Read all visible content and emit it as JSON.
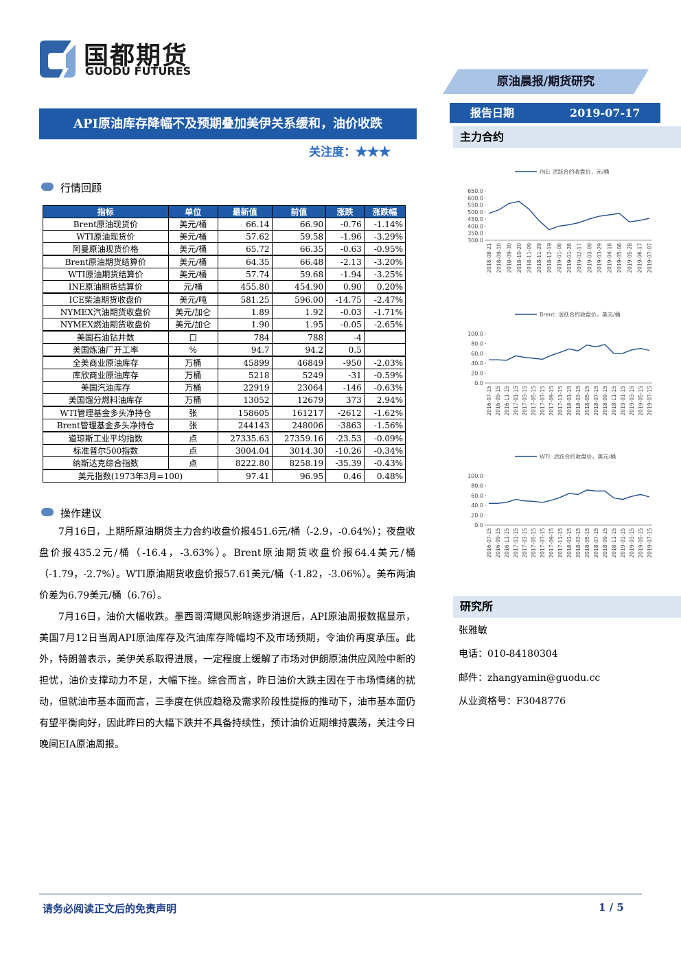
{
  "header": {
    "logo_cn": "国都期货",
    "logo_en": "GUODU FUTURES",
    "banner": "原油晨报/期货研究",
    "title": "API原油库存降幅不及预期叠加美伊关系缓和，油价收跌",
    "attention_label": "关注度：",
    "attention_stars": "★★★",
    "date_label": "报告日期",
    "date": "2019-07-17"
  },
  "market_section": "行情回顾",
  "table": {
    "headers": [
      "指标",
      "单位",
      "最新值",
      "前值",
      "涨跌",
      "涨跌幅"
    ],
    "groups": [
      [
        [
          "Brent原油现货价",
          "美元/桶",
          "66.14",
          "66.90",
          "-0.76",
          "-1.14%"
        ],
        [
          "WTI原油现货价",
          "美元/桶",
          "57.62",
          "59.58",
          "-1.96",
          "-3.29%"
        ],
        [
          "阿曼原油现货价格",
          "美元/桶",
          "65.72",
          "66.35",
          "-0.63",
          "-0.95%"
        ]
      ],
      [
        [
          "Brent原油期货结算价",
          "美元/桶",
          "64.35",
          "66.48",
          "-2.13",
          "-3.20%"
        ],
        [
          "WTI原油期货结算价",
          "美元/桶",
          "57.74",
          "59.68",
          "-1.94",
          "-3.25%"
        ],
        [
          "INE原油期货结算价",
          "元/桶",
          "455.80",
          "454.90",
          "0.90",
          "0.20%"
        ]
      ],
      [
        [
          "ICE柴油期货收盘价",
          "美元/吨",
          "581.25",
          "596.00",
          "-14.75",
          "-2.47%"
        ],
        [
          "NYMEX汽油期货收盘价",
          "美元/加仑",
          "1.89",
          "1.92",
          "-0.03",
          "-1.71%"
        ],
        [
          "NYMEX燃油期货收盘价",
          "美元/加仑",
          "1.90",
          "1.95",
          "-0.05",
          "-2.65%"
        ]
      ],
      [
        [
          "美国石油钻井数",
          "口",
          "784",
          "788",
          "-4"
        ],
        [
          "美国炼油厂开工率",
          "%",
          "94.7",
          "94.2",
          "0.5"
        ]
      ],
      [
        [
          "全美商业原油库存",
          "万桶",
          "45899",
          "46849",
          "-950",
          "-2.03%"
        ],
        [
          "库欣商业原油库存",
          "万桶",
          "5218",
          "5249",
          "-31",
          "-0.59%"
        ],
        [
          "美国汽油库存",
          "万桶",
          "22919",
          "23064",
          "-146",
          "-0.63%"
        ],
        [
          "美国馏分燃料油库存",
          "万桶",
          "13052",
          "12679",
          "373",
          "2.94%"
        ]
      ],
      [
        [
          "WTI管理基金多头净持仓",
          "张",
          "158605",
          "161217",
          "-2612",
          "-1.62%"
        ],
        [
          "Brent管理基金多头净持仓",
          "张",
          "244143",
          "248006",
          "-3863",
          "-1.56%"
        ]
      ],
      [
        [
          "道琼斯工业平均指数",
          "点",
          "27335.63",
          "27359.16",
          "-23.53",
          "-0.09%"
        ],
        [
          "标准普尔500指数",
          "点",
          "3004.04",
          "3014.30",
          "-10.26",
          "-0.34%"
        ],
        [
          "纳斯达克综合指数",
          "点",
          "8222.80",
          "8258.19",
          "-35.39",
          "-0.43%"
        ]
      ]
    ],
    "footer_row": [
      "美元指数(1973年3月=100)",
      "97.41",
      "96.95",
      "0.46",
      "0.48%"
    ]
  },
  "advice_section": "操作建议",
  "paragraphs": [
    "7月16日，上期所原油期货主力合约收盘价报451.6元/桶（-2.9，-0.64%）；夜盘收盘价报435.2元/桶（-16.4，-3.63%）。Brent原油期货收盘价报64.4美元/桶（-1.79，-2.7%）。WTI原油期货收盘价报57.61美元/桶（-1.82，-3.06%）。美布两油价差为6.79美元/桶（6.76）。",
    "7月16日，油价大幅收跌。墨西哥湾飓风影响逐步消退后，API原油周报数据显示，美国7月12日当周API原油库存及汽油库存降幅均不及市场预期，令油价再度承压。此外，特朗普表示，美伊关系取得进展，一定程度上缓解了市场对伊朗原油供应风险中断的担忧，油价支撑动力不足，大幅下挫。综合而言，昨日油价大跌主因在于市场情绪的扰动，但就油市基本面而言，三季度在供应趋稳及需求阶段性提振的推动下，油市基本面仍有望平衡向好，因此昨日的大幅下跌并不具备持续性，预计油价近期维持震荡，关注今日晚间EIA原油周报。"
  ],
  "contract_section": "主力合约",
  "charts": [
    {
      "type": "line",
      "name": "INE: 活跃合约收盘价，元/桶",
      "color": "#1f4e8c",
      "categories": [
        "2018-08-21",
        "2018-09-10",
        "2018-09-30",
        "2018-10-20",
        "2018-11-09",
        "2018-11-29",
        "2018-12-19",
        "2019-01-08",
        "2019-01-28",
        "2019-02-17",
        "2019-03-09",
        "2019-03-29",
        "2019-04-18",
        "2019-05-08",
        "2019-05-28",
        "2019-06-17",
        "2019-07-07"
      ],
      "values": [
        490,
        515,
        560,
        575,
        520,
        440,
        375,
        400,
        410,
        425,
        450,
        470,
        480,
        490,
        430,
        440,
        455
      ],
      "ylim": [
        300,
        650
      ],
      "yticks": [
        {
          "value": 300,
          "label": "300.0"
        },
        {
          "value": 350,
          "label": "350.0"
        },
        {
          "value": 400,
          "label": "400.0"
        },
        {
          "value": 450,
          "label": "450.0"
        },
        {
          "value": 500,
          "label": "500.0"
        },
        {
          "value": 550,
          "label": "550.0"
        },
        {
          "value": 600,
          "label": "600.0"
        },
        {
          "value": 650,
          "label": "650.0"
        }
      ]
    },
    {
      "type": "line",
      "name": "Brent: 活跃合约收盘价，美元/桶",
      "color": "#1f4e8c",
      "categories": [
        "2016-07-15",
        "2016-09-15",
        "2016-11-15",
        "2017-01-15",
        "2017-03-15",
        "2017-05-15",
        "2017-07-15",
        "2017-09-15",
        "2017-11-15",
        "2018-01-15",
        "2018-03-15",
        "2018-05-15",
        "2018-07-15",
        "2018-09-15",
        "2018-11-15",
        "2019-01-15",
        "2019-03-15",
        "2019-05-15",
        "2019-07-15"
      ],
      "values": [
        47,
        47,
        46,
        55,
        52,
        50,
        48,
        56,
        62,
        69,
        65,
        77,
        73,
        78,
        60,
        60,
        67,
        70,
        66
      ],
      "ylim": [
        0,
        100
      ],
      "yticks": [
        {
          "value": 0,
          "label": "0.0"
        },
        {
          "value": 20,
          "label": "20.0"
        },
        {
          "value": 40,
          "label": "40.0"
        },
        {
          "value": 60,
          "label": "60.0"
        },
        {
          "value": 80,
          "label": "80.0"
        },
        {
          "value": 100,
          "label": "100.0"
        }
      ]
    },
    {
      "type": "line",
      "name": "WTI: 活跃合约收盘价，美元/桶",
      "color": "#1f4e8c",
      "categories": [
        "2016-07-15",
        "2016-09-15",
        "2016-11-15",
        "2017-01-15",
        "2017-03-15",
        "2017-05-15",
        "2017-07-15",
        "2017-09-15",
        "2017-11-15",
        "2018-01-15",
        "2018-03-15",
        "2018-05-15",
        "2018-07-15",
        "2018-09-15",
        "2018-11-15",
        "2019-01-15",
        "2019-03-15",
        "2019-05-15",
        "2019-07-15"
      ],
      "values": [
        44,
        44,
        46,
        52,
        49,
        48,
        46,
        50,
        56,
        64,
        62,
        71,
        69,
        69,
        55,
        52,
        58,
        62,
        57
      ],
      "ylim": [
        0,
        100
      ],
      "yticks": [
        {
          "value": 0,
          "label": "0.0"
        },
        {
          "value": 20,
          "label": "20.0"
        },
        {
          "value": 40,
          "label": "40.0"
        },
        {
          "value": 60,
          "label": "60.0"
        },
        {
          "value": 80,
          "label": "80.0"
        },
        {
          "value": 100,
          "label": "100.0"
        }
      ]
    }
  ],
  "research": {
    "section": "研究所",
    "name": "张雅敏",
    "phone": "电话：010-84180304",
    "email": "邮件：zhangyamin@guodu.cc",
    "license": "从业资格号：F3048776"
  },
  "footer": {
    "disclaimer": "请务必阅读正文后的免责声明",
    "page": "1 / 5"
  }
}
